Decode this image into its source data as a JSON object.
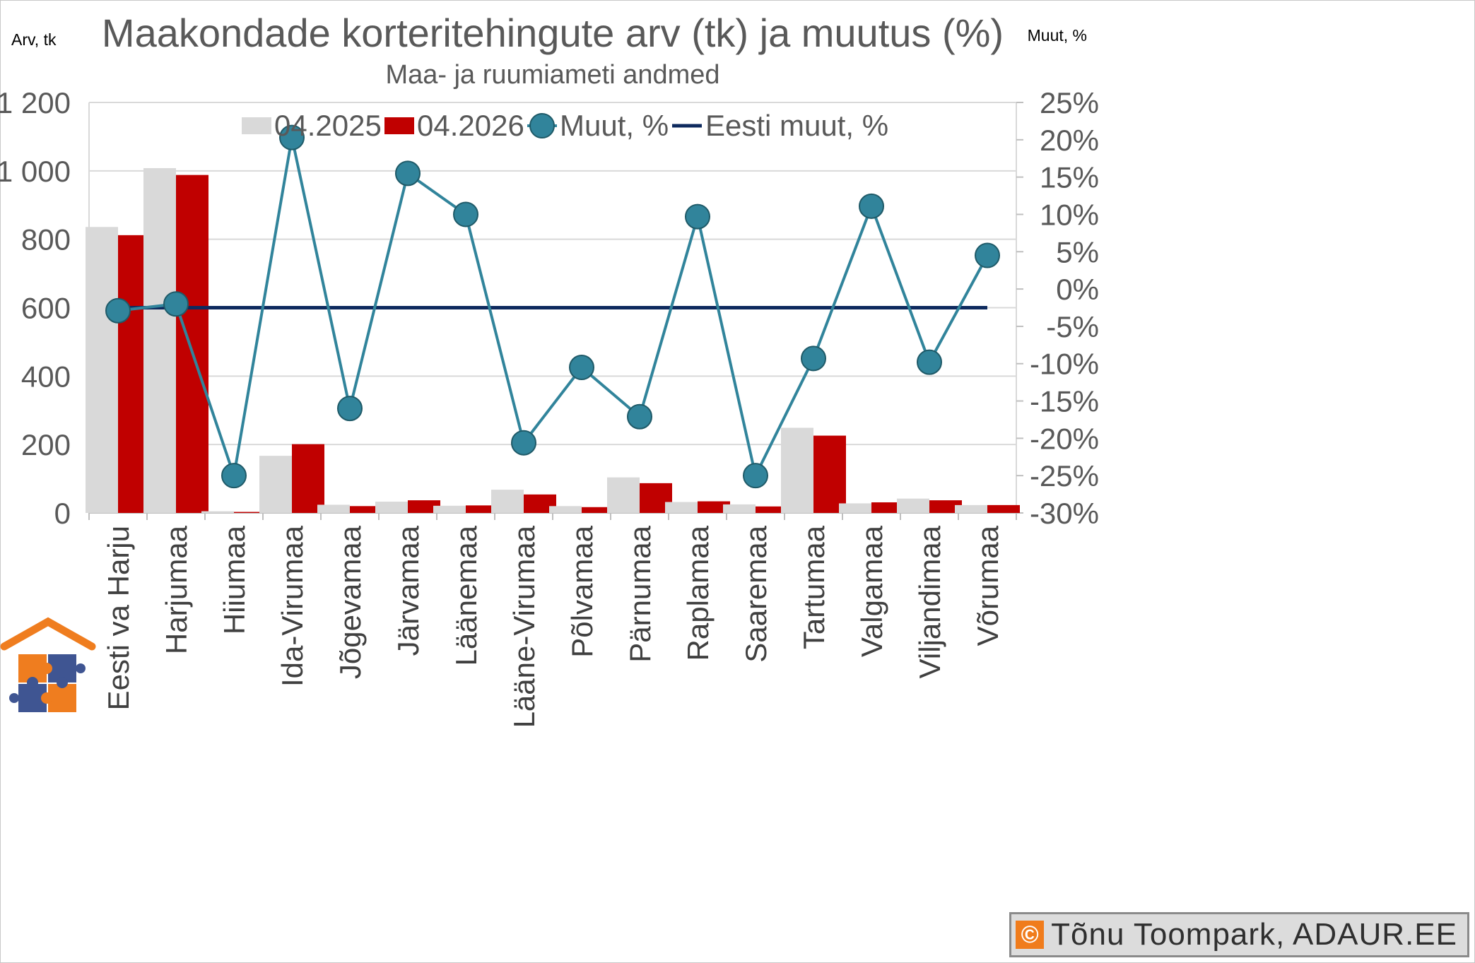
{
  "chart_data": {
    "type": "bar",
    "title": "Maakondade korteritehingute arv (tk) ja muutus (%)",
    "subtitle": "Maa- ja ruumiameti andmed",
    "ylabel_left": "Arv, tk",
    "ylabel_right": "Muut, %",
    "ylim_left": [
      0,
      1200
    ],
    "ylim_right": [
      -30,
      25
    ],
    "yticks_left": [
      "0",
      "200",
      "400",
      "600",
      "800",
      "1 000",
      "1 200"
    ],
    "yticks_right": [
      "-30%",
      "-25%",
      "-20%",
      "-15%",
      "-10%",
      "-5%",
      "0%",
      "5%",
      "10%",
      "15%",
      "20%",
      "25%"
    ],
    "grid": true,
    "legend_position": "top",
    "categories": [
      "Eesti va Harju",
      "Harjumaa",
      "Hiiumaa",
      "Ida-Virumaa",
      "Jõgevamaa",
      "Järvamaa",
      "Läänemaa",
      "Lääne-Virumaa",
      "Põlvamaa",
      "Pärnumaa",
      "Raplamaa",
      "Saaremaa",
      "Tartumaa",
      "Valgamaa",
      "Viljandimaa",
      "Võrumaa"
    ],
    "series": [
      {
        "name": "04.2025",
        "type": "bar",
        "axis": "left",
        "color": "#d9d9d9",
        "values": [
          836,
          1008,
          5,
          167,
          24,
          33,
          21,
          68,
          20,
          104,
          32,
          25,
          249,
          28,
          42,
          23
        ]
      },
      {
        "name": "04.2026",
        "type": "bar",
        "axis": "left",
        "color": "#c00000",
        "values": [
          812,
          988,
          3,
          201,
          20,
          37,
          22,
          54,
          17,
          87,
          34,
          19,
          226,
          31,
          37,
          23
        ]
      },
      {
        "name": "Muut, %",
        "type": "line-marker",
        "axis": "right",
        "color": "#31849b",
        "values": [
          -2.9,
          -2.0,
          -25.0,
          20.3,
          -16.0,
          15.5,
          10.0,
          -20.6,
          -10.5,
          -17.1,
          9.7,
          -25.0,
          -9.3,
          11.1,
          -9.8,
          4.5
        ]
      },
      {
        "name": "Eesti muut, %",
        "type": "line",
        "axis": "right",
        "color": "#0e2a5e",
        "values": [
          -2.5,
          -2.5,
          -2.5,
          -2.5,
          -2.5,
          -2.5,
          -2.5,
          -2.5,
          -2.5,
          -2.5,
          -2.5,
          -2.5,
          -2.5,
          -2.5,
          -2.5,
          -2.5
        ]
      }
    ]
  },
  "logo": {
    "name": "house-puzzle-logo"
  },
  "credit": {
    "symbol": "©",
    "text": "Tõnu Toompark, ADAUR.EE"
  }
}
